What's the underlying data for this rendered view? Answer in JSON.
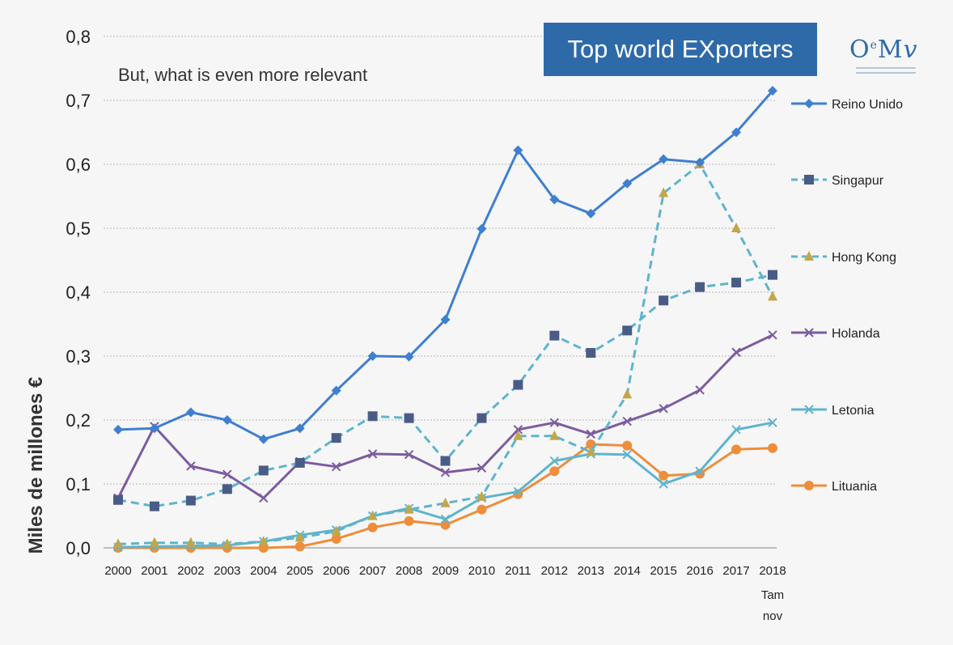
{
  "slide": {
    "title": "Top world EXporters",
    "subtitle": "But, what is even more relevant",
    "logo_text": "OeMv"
  },
  "colors": {
    "blue": "#3f7fcf",
    "teal": "#5fb4cc",
    "purple": "#7c5c9e",
    "orange": "#ee8d3a",
    "navy": "#4a5c86",
    "olive": "#c2a648",
    "title_bg": "#2f6aa8"
  },
  "chart_data": {
    "type": "line",
    "title": "Top world EXporters",
    "ylabel": "Miles de millones €",
    "xlabel": "",
    "ylim": [
      0,
      0.8
    ],
    "grid": true,
    "legend_position": "right",
    "y_ticks": [
      "0,0",
      "0,1",
      "0,2",
      "0,3",
      "0,4",
      "0,5",
      "0,6",
      "0,7",
      "0,8"
    ],
    "categories": [
      "2000",
      "2001",
      "2002",
      "2003",
      "2004",
      "2005",
      "2006",
      "2007",
      "2008",
      "2009",
      "2010",
      "2011",
      "2012",
      "2013",
      "2014",
      "2015",
      "2016",
      "2017",
      "2018"
    ],
    "last_category_note": [
      "Tam",
      "nov"
    ],
    "series": [
      {
        "name": "Reino Unido",
        "line_color": "#3f7fcf",
        "marker": "diamond",
        "marker_color": "#3f7fcf",
        "dashed": false,
        "values": [
          0.185,
          0.187,
          0.212,
          0.2,
          0.17,
          0.187,
          0.246,
          0.3,
          0.299,
          0.357,
          0.499,
          0.622,
          0.545,
          0.523,
          0.57,
          0.608,
          0.603,
          0.65,
          0.715
        ]
      },
      {
        "name": "Singapur",
        "line_color": "#5fb4cc",
        "marker": "square",
        "marker_color": "#4a5c86",
        "dashed": true,
        "values": [
          0.075,
          0.065,
          0.074,
          0.092,
          0.121,
          0.133,
          0.172,
          0.206,
          0.203,
          0.136,
          0.203,
          0.255,
          0.332,
          0.305,
          0.34,
          0.387,
          0.408,
          0.415,
          0.427
        ]
      },
      {
        "name": "Hong Kong",
        "line_color": "#5fb4cc",
        "marker": "triangle",
        "marker_color": "#c2a648",
        "dashed": true,
        "values": [
          0.006,
          0.008,
          0.008,
          0.006,
          0.01,
          0.016,
          0.026,
          0.05,
          0.06,
          0.07,
          0.08,
          0.175,
          0.175,
          0.15,
          0.24,
          0.555,
          0.6,
          0.5,
          0.393
        ]
      },
      {
        "name": "Holanda",
        "line_color": "#7c5c9e",
        "marker": "cross",
        "marker_color": "#7c5c9e",
        "dashed": false,
        "values": [
          0.078,
          0.19,
          0.128,
          0.115,
          0.078,
          0.135,
          0.127,
          0.147,
          0.146,
          0.118,
          0.125,
          0.185,
          0.196,
          0.178,
          0.198,
          0.218,
          0.247,
          0.306,
          0.333
        ]
      },
      {
        "name": "Letonia",
        "line_color": "#5fb4cc",
        "marker": "cross",
        "marker_color": "#5fb4cc",
        "dashed": false,
        "values": [
          0.001,
          0.002,
          0.003,
          0.004,
          0.01,
          0.02,
          0.028,
          0.05,
          0.062,
          0.045,
          0.078,
          0.088,
          0.136,
          0.147,
          0.146,
          0.1,
          0.12,
          0.185,
          0.196
        ]
      },
      {
        "name": "Lituania",
        "line_color": "#ee8d3a",
        "marker": "circle",
        "marker_color": "#ee8d3a",
        "dashed": false,
        "values": [
          0.0,
          0.0,
          0.0,
          0.0,
          0.0,
          0.002,
          0.014,
          0.032,
          0.042,
          0.036,
          0.06,
          0.084,
          0.12,
          0.162,
          0.16,
          0.113,
          0.116,
          0.154,
          0.156
        ]
      }
    ]
  }
}
